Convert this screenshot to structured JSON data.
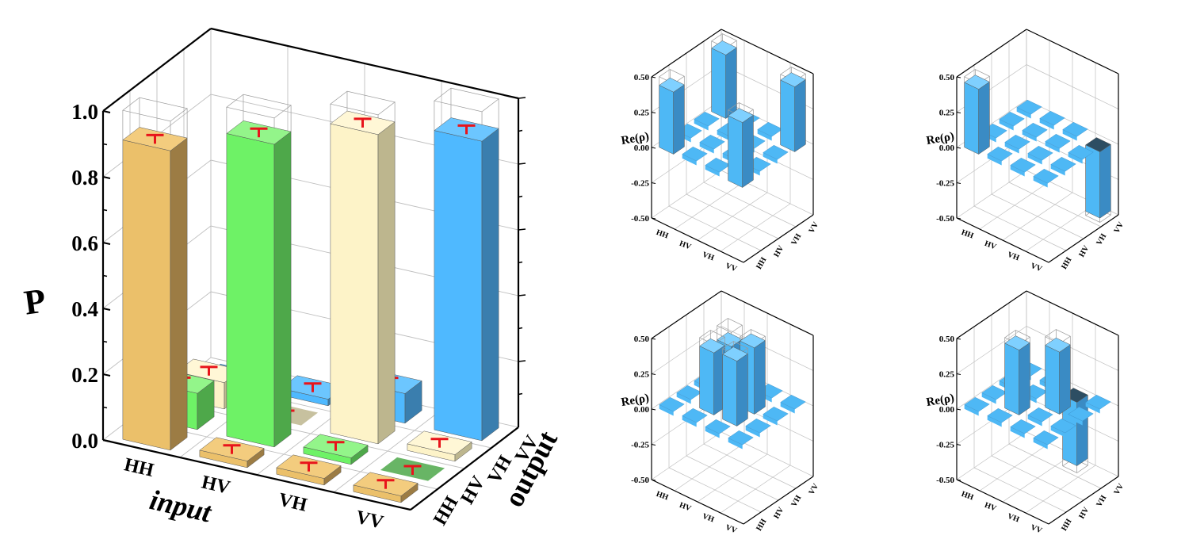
{
  "colors": {
    "hh": {
      "top": "#f3cc7e",
      "front": "#ebc06a",
      "side": "#9c7c44"
    },
    "hv": {
      "top": "#93f58a",
      "front": "#6ef266",
      "side": "#4ea84a"
    },
    "vh": {
      "top": "#fff7d6",
      "front": "#fdf3c8",
      "side": "#bdb68e"
    },
    "vv": {
      "top": "#6cc6ff",
      "front": "#4fb9ff",
      "side": "#3a7eae"
    },
    "rho": {
      "top": "#7fd0ff",
      "front": "#4eb8f5",
      "side": "#3a8bc4",
      "dark": "#2d4e63"
    },
    "error_bar": "#e8141b",
    "grid": "#bfbfbf"
  },
  "chart_data": [
    {
      "type": "bar3d",
      "zlabel": "P",
      "xlabel": "input",
      "ylabel": "output",
      "x_categories": [
        "HH",
        "HV",
        "VH",
        "VV"
      ],
      "y_categories": [
        "HH",
        "HV",
        "VH",
        "VV"
      ],
      "z_ticks": [
        "0.0",
        "0.2",
        "0.4",
        "0.6",
        "0.8",
        "1.0"
      ],
      "zlim": [
        0,
        1
      ],
      "values": [
        [
          0.91,
          0.02,
          0.02,
          0.02
        ],
        [
          0.11,
          0.92,
          0.02,
          0.0
        ],
        [
          0.08,
          0.0,
          0.94,
          0.02
        ],
        [
          0.0,
          0.02,
          0.09,
          0.91
        ]
      ],
      "ideal": [
        [
          1,
          0,
          0,
          0
        ],
        [
          0,
          1,
          0,
          0
        ],
        [
          0,
          0,
          1,
          0
        ],
        [
          0,
          0,
          0,
          1
        ]
      ]
    },
    {
      "type": "bar3d",
      "zlabel": "Re(ρ)",
      "x_categories": [
        "HH",
        "HV",
        "VH",
        "VV"
      ],
      "y_categories": [
        "HH",
        "HV",
        "VH",
        "VV"
      ],
      "z_ticks": [
        "0.50",
        "0.25",
        "0.00",
        "-0.25",
        "-0.50"
      ],
      "zlim": [
        -0.5,
        0.5
      ],
      "values": [
        [
          0.44,
          0.02,
          0.02,
          0.46
        ],
        [
          0.02,
          0.02,
          0.02,
          0.02
        ],
        [
          0.02,
          0.02,
          0.02,
          0.02
        ],
        [
          0.45,
          0.02,
          0.02,
          0.46
        ]
      ]
    },
    {
      "type": "bar3d",
      "zlabel": "Re(ρ)",
      "x_categories": [
        "HH",
        "HV",
        "VH",
        "VV"
      ],
      "y_categories": [
        "HH",
        "HV",
        "VH",
        "VV"
      ],
      "z_ticks": [
        "0.50",
        "0.25",
        "0.00",
        "-0.25",
        "-0.50"
      ],
      "zlim": [
        -0.5,
        0.5
      ],
      "values": [
        [
          0.46,
          0.02,
          0.02,
          -0.02
        ],
        [
          0.02,
          0.03,
          0.02,
          0.02
        ],
        [
          0.02,
          0.02,
          -0.03,
          0.02
        ],
        [
          -0.02,
          0.02,
          0.02,
          -0.47
        ]
      ]
    },
    {
      "type": "bar3d",
      "zlabel": "Re(ρ)",
      "x_categories": [
        "HH",
        "HV",
        "VH",
        "VV"
      ],
      "y_categories": [
        "HH",
        "HV",
        "VH",
        "VV"
      ],
      "z_ticks": [
        "0.50",
        "0.25",
        "0.00",
        "-0.25",
        "-0.50"
      ],
      "zlim": [
        -0.5,
        0.5
      ],
      "values": [
        [
          0.02,
          0.02,
          0.02,
          0.02
        ],
        [
          0.02,
          0.44,
          0.46,
          0.02
        ],
        [
          0.02,
          0.4,
          0.47,
          0.02
        ],
        [
          0.02,
          0.02,
          0.02,
          0.02
        ]
      ]
    },
    {
      "type": "bar3d",
      "zlabel": "Re(ρ)",
      "x_categories": [
        "HH",
        "HV",
        "VH",
        "VV"
      ],
      "y_categories": [
        "HH",
        "HV",
        "VH",
        "VV"
      ],
      "z_ticks": [
        "0.50",
        "0.25",
        "0.00",
        "-0.25",
        "-0.50"
      ],
      "zlim": [
        -0.5,
        0.5
      ],
      "values": [
        [
          0.02,
          0.02,
          0.02,
          0.02
        ],
        [
          0.02,
          0.46,
          -0.02,
          0.02
        ],
        [
          0.02,
          -0.03,
          0.44,
          0.02
        ],
        [
          0.02,
          0.02,
          -0.45,
          0.02
        ]
      ]
    }
  ]
}
